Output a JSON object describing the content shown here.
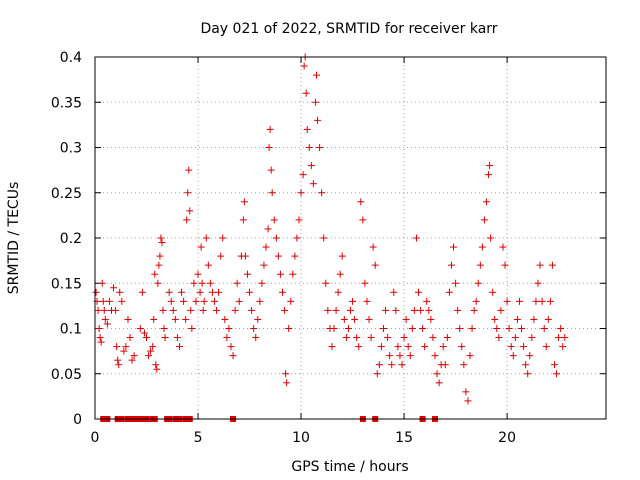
{
  "chart_data": {
    "type": "scatter",
    "title": "Day 021 of 2022, SRMTID for receiver karr",
    "xlabel": "GPS time / hours",
    "ylabel": "SRMTID / TECUs",
    "xlim": [
      0,
      24.8
    ],
    "ylim": [
      0,
      0.4
    ],
    "xticks": [
      0,
      5,
      10,
      15,
      20
    ],
    "xtick_labels": [
      "0",
      "5",
      "10",
      "15",
      "20"
    ],
    "yticks": [
      0,
      0.05,
      0.1,
      0.15,
      0.2,
      0.25,
      0.3,
      0.35,
      0.4
    ],
    "ytick_labels": [
      "0",
      "0.05",
      "0.1",
      "0.15",
      "0.2",
      "0.25",
      "0.3",
      "0.35",
      "0.4"
    ],
    "grid": true,
    "marker": "plus",
    "color": "#dd0000",
    "series": [
      {
        "name": "SRMTID",
        "points": [
          [
            0.05,
            0.14
          ],
          [
            0.1,
            0.13
          ],
          [
            0.15,
            0.12
          ],
          [
            0.2,
            0.1
          ],
          [
            0.25,
            0.09
          ],
          [
            0.3,
            0.085
          ],
          [
            0.35,
            0.15
          ],
          [
            0.4,
            0.13
          ],
          [
            0.45,
            0.12
          ],
          [
            0.5,
            0.11
          ],
          [
            0.6,
            0.105
          ],
          [
            0.7,
            0.13
          ],
          [
            0.8,
            0.12
          ],
          [
            0.9,
            0.145
          ],
          [
            1.0,
            0.12
          ],
          [
            1.05,
            0.08
          ],
          [
            1.1,
            0.065
          ],
          [
            1.15,
            0.06
          ],
          [
            1.2,
            0.14
          ],
          [
            1.3,
            0.13
          ],
          [
            1.4,
            0.075
          ],
          [
            1.5,
            0.08
          ],
          [
            1.6,
            0.11
          ],
          [
            1.7,
            0.09
          ],
          [
            1.8,
            0.065
          ],
          [
            1.9,
            0.07
          ],
          [
            2.2,
            0.1
          ],
          [
            2.3,
            0.14
          ],
          [
            2.4,
            0.095
          ],
          [
            2.5,
            0.09
          ],
          [
            2.6,
            0.07
          ],
          [
            2.7,
            0.075
          ],
          [
            2.8,
            0.08
          ],
          [
            2.85,
            0.11
          ],
          [
            2.9,
            0.16
          ],
          [
            2.95,
            0.06
          ],
          [
            3.0,
            0.055
          ],
          [
            3.05,
            0.15
          ],
          [
            3.1,
            0.17
          ],
          [
            3.15,
            0.18
          ],
          [
            3.2,
            0.2
          ],
          [
            3.25,
            0.195
          ],
          [
            3.3,
            0.12
          ],
          [
            3.35,
            0.1
          ],
          [
            3.4,
            0.09
          ],
          [
            3.6,
            0.14
          ],
          [
            3.7,
            0.13
          ],
          [
            3.8,
            0.12
          ],
          [
            3.9,
            0.11
          ],
          [
            4.0,
            0.09
          ],
          [
            4.1,
            0.08
          ],
          [
            4.2,
            0.14
          ],
          [
            4.3,
            0.13
          ],
          [
            4.4,
            0.11
          ],
          [
            4.45,
            0.22
          ],
          [
            4.5,
            0.25
          ],
          [
            4.55,
            0.275
          ],
          [
            4.6,
            0.23
          ],
          [
            4.65,
            0.12
          ],
          [
            4.7,
            0.1
          ],
          [
            4.8,
            0.15
          ],
          [
            4.9,
            0.13
          ],
          [
            5.0,
            0.16
          ],
          [
            5.1,
            0.14
          ],
          [
            5.15,
            0.19
          ],
          [
            5.2,
            0.15
          ],
          [
            5.25,
            0.12
          ],
          [
            5.3,
            0.13
          ],
          [
            5.4,
            0.2
          ],
          [
            5.5,
            0.17
          ],
          [
            5.6,
            0.15
          ],
          [
            5.7,
            0.14
          ],
          [
            5.8,
            0.13
          ],
          [
            5.9,
            0.12
          ],
          [
            6.0,
            0.14
          ],
          [
            6.1,
            0.18
          ],
          [
            6.2,
            0.2
          ],
          [
            6.3,
            0.11
          ],
          [
            6.4,
            0.09
          ],
          [
            6.5,
            0.1
          ],
          [
            6.6,
            0.08
          ],
          [
            6.7,
            0.07
          ],
          [
            6.8,
            0.12
          ],
          [
            6.9,
            0.15
          ],
          [
            7.0,
            0.13
          ],
          [
            7.1,
            0.18
          ],
          [
            7.2,
            0.22
          ],
          [
            7.25,
            0.24
          ],
          [
            7.3,
            0.18
          ],
          [
            7.4,
            0.16
          ],
          [
            7.5,
            0.14
          ],
          [
            7.6,
            0.12
          ],
          [
            7.7,
            0.1
          ],
          [
            7.8,
            0.09
          ],
          [
            7.9,
            0.11
          ],
          [
            8.0,
            0.13
          ],
          [
            8.1,
            0.15
          ],
          [
            8.2,
            0.17
          ],
          [
            8.3,
            0.19
          ],
          [
            8.4,
            0.21
          ],
          [
            8.45,
            0.3
          ],
          [
            8.5,
            0.32
          ],
          [
            8.55,
            0.275
          ],
          [
            8.6,
            0.25
          ],
          [
            8.7,
            0.22
          ],
          [
            8.8,
            0.2
          ],
          [
            8.9,
            0.18
          ],
          [
            9.0,
            0.16
          ],
          [
            9.1,
            0.14
          ],
          [
            9.2,
            0.12
          ],
          [
            9.25,
            0.05
          ],
          [
            9.3,
            0.04
          ],
          [
            9.4,
            0.1
          ],
          [
            9.5,
            0.13
          ],
          [
            9.6,
            0.16
          ],
          [
            9.7,
            0.18
          ],
          [
            9.8,
            0.2
          ],
          [
            9.9,
            0.22
          ],
          [
            10.0,
            0.25
          ],
          [
            10.1,
            0.27
          ],
          [
            10.15,
            0.39
          ],
          [
            10.2,
            0.4
          ],
          [
            10.25,
            0.36
          ],
          [
            10.3,
            0.32
          ],
          [
            10.4,
            0.3
          ],
          [
            10.5,
            0.28
          ],
          [
            10.6,
            0.26
          ],
          [
            10.7,
            0.35
          ],
          [
            10.75,
            0.38
          ],
          [
            10.8,
            0.33
          ],
          [
            10.9,
            0.3
          ],
          [
            11.0,
            0.25
          ],
          [
            11.1,
            0.2
          ],
          [
            11.2,
            0.15
          ],
          [
            11.3,
            0.12
          ],
          [
            11.4,
            0.1
          ],
          [
            11.5,
            0.08
          ],
          [
            11.6,
            0.1
          ],
          [
            11.7,
            0.12
          ],
          [
            11.8,
            0.14
          ],
          [
            11.9,
            0.16
          ],
          [
            12.0,
            0.18
          ],
          [
            12.1,
            0.11
          ],
          [
            12.2,
            0.09
          ],
          [
            12.3,
            0.1
          ],
          [
            12.4,
            0.12
          ],
          [
            12.5,
            0.13
          ],
          [
            12.6,
            0.11
          ],
          [
            12.7,
            0.09
          ],
          [
            12.8,
            0.08
          ],
          [
            12.9,
            0.24
          ],
          [
            13.0,
            0.22
          ],
          [
            13.1,
            0.15
          ],
          [
            13.2,
            0.13
          ],
          [
            13.3,
            0.11
          ],
          [
            13.4,
            0.09
          ],
          [
            13.5,
            0.19
          ],
          [
            13.6,
            0.17
          ],
          [
            13.7,
            0.05
          ],
          [
            13.8,
            0.06
          ],
          [
            13.9,
            0.08
          ],
          [
            14.0,
            0.1
          ],
          [
            14.1,
            0.12
          ],
          [
            14.2,
            0.09
          ],
          [
            14.3,
            0.07
          ],
          [
            14.4,
            0.06
          ],
          [
            14.5,
            0.14
          ],
          [
            14.6,
            0.12
          ],
          [
            14.7,
            0.08
          ],
          [
            14.8,
            0.07
          ],
          [
            14.9,
            0.06
          ],
          [
            15.0,
            0.09
          ],
          [
            15.1,
            0.11
          ],
          [
            15.2,
            0.08
          ],
          [
            15.3,
            0.07
          ],
          [
            15.4,
            0.1
          ],
          [
            15.5,
            0.12
          ],
          [
            15.6,
            0.2
          ],
          [
            15.7,
            0.14
          ],
          [
            15.8,
            0.12
          ],
          [
            15.9,
            0.1
          ],
          [
            16.0,
            0.08
          ],
          [
            16.1,
            0.13
          ],
          [
            16.2,
            0.12
          ],
          [
            16.3,
            0.11
          ],
          [
            16.4,
            0.09
          ],
          [
            16.5,
            0.07
          ],
          [
            16.6,
            0.05
          ],
          [
            16.7,
            0.04
          ],
          [
            16.8,
            0.06
          ],
          [
            16.9,
            0.08
          ],
          [
            17.0,
            0.06
          ],
          [
            17.1,
            0.09
          ],
          [
            17.2,
            0.14
          ],
          [
            17.3,
            0.17
          ],
          [
            17.4,
            0.19
          ],
          [
            17.5,
            0.15
          ],
          [
            17.6,
            0.12
          ],
          [
            17.7,
            0.1
          ],
          [
            17.8,
            0.08
          ],
          [
            17.9,
            0.06
          ],
          [
            18.0,
            0.03
          ],
          [
            18.1,
            0.02
          ],
          [
            18.2,
            0.07
          ],
          [
            18.3,
            0.1
          ],
          [
            18.4,
            0.12
          ],
          [
            18.5,
            0.13
          ],
          [
            18.6,
            0.15
          ],
          [
            18.7,
            0.17
          ],
          [
            18.8,
            0.19
          ],
          [
            18.9,
            0.22
          ],
          [
            19.0,
            0.24
          ],
          [
            19.1,
            0.27
          ],
          [
            19.15,
            0.28
          ],
          [
            19.2,
            0.2
          ],
          [
            19.3,
            0.14
          ],
          [
            19.4,
            0.11
          ],
          [
            19.5,
            0.1
          ],
          [
            19.6,
            0.09
          ],
          [
            19.7,
            0.12
          ],
          [
            19.8,
            0.19
          ],
          [
            19.9,
            0.17
          ],
          [
            20.0,
            0.13
          ],
          [
            20.1,
            0.1
          ],
          [
            20.2,
            0.08
          ],
          [
            20.3,
            0.07
          ],
          [
            20.4,
            0.09
          ],
          [
            20.5,
            0.11
          ],
          [
            20.6,
            0.13
          ],
          [
            20.7,
            0.1
          ],
          [
            20.8,
            0.08
          ],
          [
            20.9,
            0.06
          ],
          [
            21.0,
            0.05
          ],
          [
            21.1,
            0.07
          ],
          [
            21.2,
            0.09
          ],
          [
            21.3,
            0.11
          ],
          [
            21.4,
            0.13
          ],
          [
            21.5,
            0.15
          ],
          [
            21.6,
            0.17
          ],
          [
            21.7,
            0.13
          ],
          [
            21.8,
            0.1
          ],
          [
            21.9,
            0.08
          ],
          [
            22.0,
            0.11
          ],
          [
            22.1,
            0.13
          ],
          [
            22.2,
            0.17
          ],
          [
            22.3,
            0.06
          ],
          [
            22.4,
            0.05
          ],
          [
            22.5,
            0.09
          ],
          [
            22.6,
            0.1
          ],
          [
            22.7,
            0.08
          ],
          [
            22.8,
            0.09
          ]
        ]
      }
    ],
    "zero_points_x": [
      0.4,
      0.5,
      0.6,
      1.1,
      1.2,
      1.3,
      1.6,
      1.7,
      1.8,
      1.9,
      2.0,
      2.1,
      2.2,
      2.3,
      2.4,
      2.5,
      2.8,
      2.9,
      3.5,
      3.6,
      3.9,
      4.0,
      4.1,
      4.4,
      4.5,
      4.6,
      6.7,
      13.0,
      13.6,
      15.9,
      16.5
    ]
  }
}
